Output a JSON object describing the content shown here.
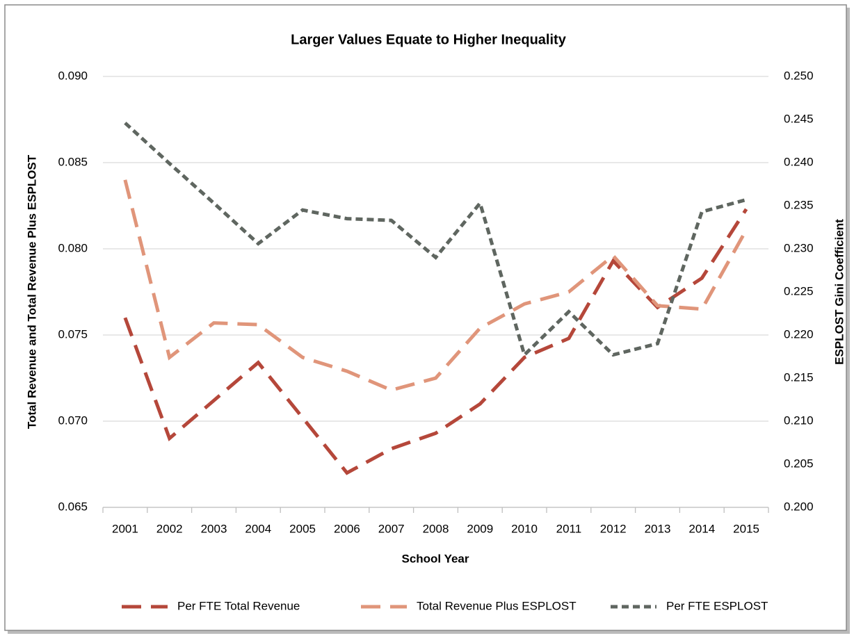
{
  "chart_data": {
    "type": "line",
    "title": "Larger Values Equate to Higher Inequality",
    "x_label": "School Year",
    "y_label": "Total Revenue and Total Revenue Plus ESPLOST",
    "y2_label": "ESPLOST Gini Coefficient",
    "categories": [
      "2001",
      "2002",
      "2003",
      "2004",
      "2005",
      "2006",
      "2007",
      "2008",
      "2009",
      "2010",
      "2011",
      "2012",
      "2013",
      "2014",
      "2015"
    ],
    "series": [
      {
        "name": "Per FTE Total Revenue",
        "color": "#b5473a",
        "dash": "long",
        "values": [
          0.076,
          0.069,
          0.0712,
          0.0734,
          0.0702,
          0.067,
          0.0684,
          0.0693,
          0.071,
          0.0737,
          0.0748,
          0.0793,
          0.0766,
          0.0783,
          0.0823
        ]
      },
      {
        "name": "Total Revenue Plus ESPLOST",
        "color": "#e0957a",
        "dash": "long",
        "values": [
          0.084,
          0.0737,
          0.0757,
          0.0756,
          0.0737,
          0.0729,
          0.0718,
          0.0725,
          0.0754,
          0.0768,
          0.0775,
          0.0796,
          0.0767,
          0.0765,
          0.0811
        ]
      },
      {
        "name": "Per FTE ESPLOST",
        "color": "#5f6660",
        "dash": "short",
        "axis": "y2",
        "values": [
          0.2446,
          0.2399,
          0.2353,
          0.2306,
          0.2345,
          0.2335,
          0.2333,
          0.229,
          0.2353,
          0.2177,
          0.2227,
          0.2177,
          0.219,
          0.2343,
          0.2357
        ]
      }
    ],
    "ylim": [
      0.065,
      0.09
    ],
    "yticks": [
      0.065,
      {
        "value": 0.07,
        "label": "0.070"
      },
      0.075,
      {
        "value": 0.08,
        "label": "0.080"
      },
      0.085,
      {
        "value": 0.09,
        "label": "0.090"
      }
    ],
    "y2lim": [
      0.2,
      0.25
    ],
    "y2ticks": [
      {
        "value": 0.2,
        "label": "0.200"
      },
      0.205,
      {
        "value": 0.21,
        "label": "0.210"
      },
      0.215,
      {
        "value": 0.22,
        "label": "0.220"
      },
      0.225,
      {
        "value": 0.23,
        "label": "0.230"
      },
      0.235,
      {
        "value": 0.24,
        "label": "0.240"
      },
      0.245,
      {
        "value": 0.25,
        "label": "0.250"
      }
    ],
    "grid": true,
    "legend": "bottom"
  }
}
